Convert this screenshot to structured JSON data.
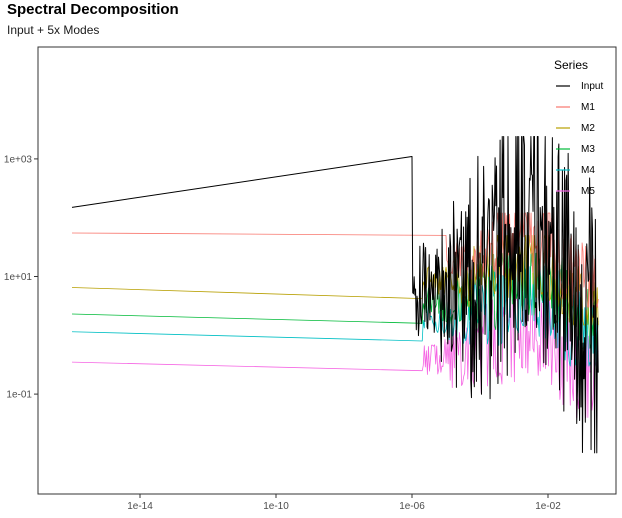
{
  "chart_data": {
    "type": "line",
    "title": "Spectral Decomposition",
    "subtitle": "Input + 5x Modes",
    "xlabel": "",
    "ylabel": "",
    "x_scale": "log10",
    "y_scale": "log10",
    "xlim": [
      1e-17,
      1.0
    ],
    "ylim": [
      0.002,
      80000
    ],
    "grid": false,
    "x_ticks": [
      {
        "value": 1e-14,
        "label": "1e-14"
      },
      {
        "value": 1e-10,
        "label": "1e-10"
      },
      {
        "value": 1e-06,
        "label": "1e-06"
      },
      {
        "value": 0.01,
        "label": "1e-02"
      }
    ],
    "y_ticks": [
      {
        "value": 0.1,
        "label": "1e-01"
      },
      {
        "value": 10,
        "label": "1e+01"
      },
      {
        "value": 1000,
        "label": "1e+03"
      }
    ],
    "legend": {
      "title": "Series",
      "placement": "top-right"
    },
    "series": [
      {
        "name": "Input",
        "color": "#000000",
        "base_points": [
          [
            1e-16,
            150
          ],
          [
            1e-06,
            1100
          ]
        ],
        "tail_range": [
          0.01,
          2400
        ]
      },
      {
        "name": "M1",
        "color": "#F8766D",
        "base_points": [
          [
            1e-16,
            55
          ],
          [
            1e-05,
            50
          ]
        ],
        "tail_range": [
          3,
          120
        ]
      },
      {
        "name": "M2",
        "color": "#B79F00",
        "base_points": [
          [
            1e-16,
            6.5
          ],
          [
            2e-06,
            4.2
          ]
        ],
        "tail_range": [
          1.5,
          50
        ]
      },
      {
        "name": "M3",
        "color": "#00BA38",
        "base_points": [
          [
            1e-16,
            2.3
          ],
          [
            2e-06,
            1.6
          ]
        ],
        "tail_range": [
          0.6,
          25
        ]
      },
      {
        "name": "M4",
        "color": "#00BFC4",
        "base_points": [
          [
            1e-16,
            1.15
          ],
          [
            2e-06,
            0.8
          ]
        ],
        "tail_range": [
          0.3,
          15
        ]
      },
      {
        "name": "M5",
        "color": "#F564E3",
        "base_points": [
          [
            1e-16,
            0.35
          ],
          [
            2e-06,
            0.25
          ]
        ],
        "tail_range": [
          0.04,
          4
        ]
      }
    ]
  }
}
